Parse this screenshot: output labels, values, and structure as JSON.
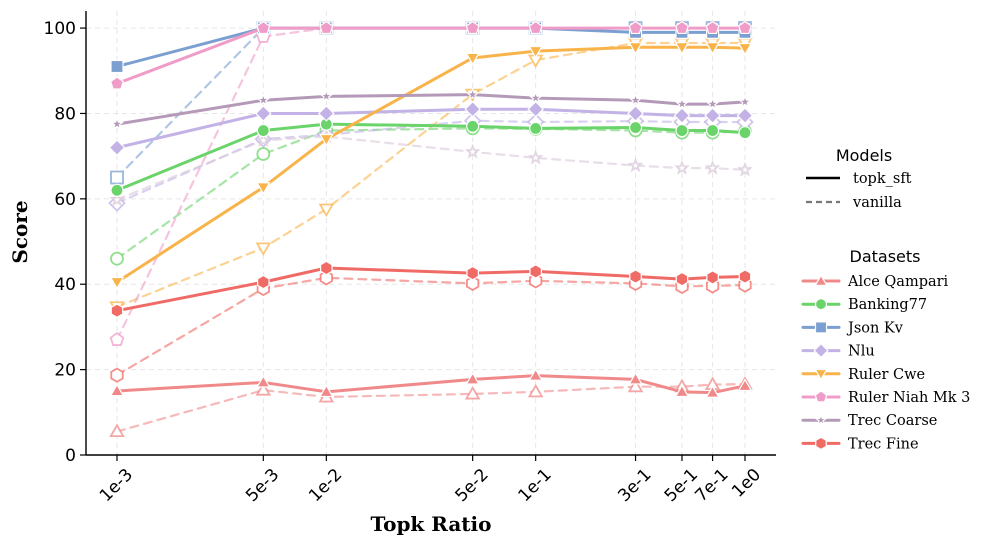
{
  "chart_data": {
    "type": "line",
    "title": "",
    "xlabel": "Topk Ratio",
    "ylabel": "Score",
    "x_scale": "log",
    "x": [
      0.001,
      0.005,
      0.01,
      0.05,
      0.1,
      0.3,
      0.5,
      0.7,
      1.0
    ],
    "x_tick_labels": [
      "1e-3",
      "5e-3",
      "1e-2",
      "5e-2",
      "1e-1",
      "3e-1",
      "5e-1",
      "7e-1",
      "1e0"
    ],
    "ylim": [
      0,
      104
    ],
    "y_ticks": [
      0,
      20,
      40,
      60,
      80,
      100
    ],
    "y_tick_labels": [
      "0",
      "20",
      "40",
      "60",
      "80",
      "100"
    ],
    "grid": true,
    "legend_models": {
      "title": "Models",
      "entries": [
        {
          "label": "topk_sft",
          "style": "solid"
        },
        {
          "label": "vanilla",
          "style": "dashed"
        }
      ]
    },
    "legend_datasets": {
      "title": "Datasets",
      "entries": [
        {
          "label": "Alce Qampari",
          "color": "#f08a8a",
          "marker": "triangle-up"
        },
        {
          "label": "Banking77",
          "color": "#6ad46a",
          "marker": "circle"
        },
        {
          "label": "Json Kv",
          "color": "#7a9fd0",
          "marker": "square"
        },
        {
          "label": "Nlu",
          "color": "#c2b2e6",
          "marker": "diamond"
        },
        {
          "label": "Ruler Cwe",
          "color": "#f8b44a",
          "marker": "triangle-down"
        },
        {
          "label": "Ruler Niah Mk 3",
          "color": "#f09cc8",
          "marker": "pentagon"
        },
        {
          "label": "Trec Coarse",
          "color": "#b49ab8",
          "marker": "star"
        },
        {
          "label": "Trec Fine",
          "color": "#f06a66",
          "marker": "hexagon"
        }
      ]
    },
    "series": [
      {
        "name": "Alce Qampari",
        "model": "topk_sft",
        "color": "#f08a8a",
        "marker": "triangle-up",
        "values": [
          15.0,
          17.0,
          14.8,
          17.7,
          18.6,
          17.7,
          14.8,
          14.6,
          16.2
        ]
      },
      {
        "name": "Alce Qampari",
        "model": "vanilla",
        "color": "#f08a8a",
        "marker": "triangle-up",
        "values": [
          5.5,
          15.2,
          13.6,
          14.3,
          14.8,
          16.0,
          16.0,
          16.5,
          16.6
        ]
      },
      {
        "name": "Banking77",
        "model": "topk_sft",
        "color": "#6ad46a",
        "marker": "circle",
        "values": [
          62.0,
          76.0,
          77.5,
          77.0,
          76.5,
          76.7,
          76.0,
          76.0,
          75.5
        ]
      },
      {
        "name": "Banking77",
        "model": "vanilla",
        "color": "#6ad46a",
        "marker": "circle",
        "values": [
          46.0,
          70.5,
          76.0,
          76.5,
          76.4,
          76.0,
          75.5,
          75.5,
          75.8
        ]
      },
      {
        "name": "Json Kv",
        "model": "topk_sft",
        "color": "#7a9fd0",
        "marker": "square",
        "values": [
          91.0,
          100.0,
          100.0,
          100.0,
          100.0,
          99.0,
          99.0,
          99.0,
          99.0
        ]
      },
      {
        "name": "Json Kv",
        "model": "vanilla",
        "color": "#7a9fd0",
        "marker": "square",
        "values": [
          65.0,
          100.0,
          100.0,
          100.0,
          100.0,
          100.0,
          100.0,
          100.0,
          100.0
        ]
      },
      {
        "name": "Nlu",
        "model": "topk_sft",
        "color": "#c2b2e6",
        "marker": "diamond",
        "values": [
          72.0,
          80.0,
          80.0,
          81.0,
          81.0,
          80.0,
          79.5,
          79.5,
          79.5
        ]
      },
      {
        "name": "Nlu",
        "model": "vanilla",
        "color": "#c2b2e6",
        "marker": "diamond",
        "values": [
          59.0,
          74.0,
          75.0,
          78.3,
          78.0,
          78.2,
          78.0,
          78.0,
          78.0
        ]
      },
      {
        "name": "Ruler Cwe",
        "model": "topk_sft",
        "color": "#f8b44a",
        "marker": "triangle-down",
        "values": [
          40.5,
          62.7,
          74.0,
          93.0,
          94.6,
          95.5,
          95.5,
          95.5,
          95.3
        ]
      },
      {
        "name": "Ruler Cwe",
        "model": "vanilla",
        "color": "#f8b44a",
        "marker": "triangle-down",
        "values": [
          34.7,
          48.5,
          57.6,
          84.5,
          92.5,
          96.5,
          96.5,
          96.5,
          96.5
        ]
      },
      {
        "name": "Ruler Niah Mk 3",
        "model": "topk_sft",
        "color": "#f09cc8",
        "marker": "pentagon",
        "values": [
          87.0,
          100.0,
          100.0,
          100.0,
          100.0,
          100.0,
          100.0,
          100.0,
          100.0
        ]
      },
      {
        "name": "Ruler Niah Mk 3",
        "model": "vanilla",
        "color": "#f09cc8",
        "marker": "pentagon",
        "values": [
          27.0,
          98.0,
          100.0,
          100.0,
          100.0,
          100.0,
          100.0,
          100.0,
          100.0
        ]
      },
      {
        "name": "Trec Coarse",
        "model": "topk_sft",
        "color": "#b49ab8",
        "marker": "star",
        "values": [
          77.5,
          83.1,
          84.0,
          84.4,
          83.6,
          83.1,
          82.2,
          82.2,
          82.7
        ]
      },
      {
        "name": "Trec Coarse",
        "model": "vanilla",
        "color": "#d8c8d8",
        "marker": "star",
        "values": [
          59.8,
          73.7,
          74.6,
          71.0,
          69.6,
          67.8,
          67.2,
          67.2,
          66.8
        ]
      },
      {
        "name": "Trec Fine",
        "model": "topk_sft",
        "color": "#f06a66",
        "marker": "hexagon",
        "values": [
          33.8,
          40.5,
          43.8,
          42.6,
          43.0,
          41.8,
          41.2,
          41.6,
          41.8
        ]
      },
      {
        "name": "Trec Fine",
        "model": "vanilla",
        "color": "#f06a66",
        "marker": "hexagon",
        "values": [
          18.7,
          39.0,
          41.5,
          40.2,
          40.8,
          40.2,
          39.5,
          39.6,
          39.8
        ]
      }
    ]
  }
}
